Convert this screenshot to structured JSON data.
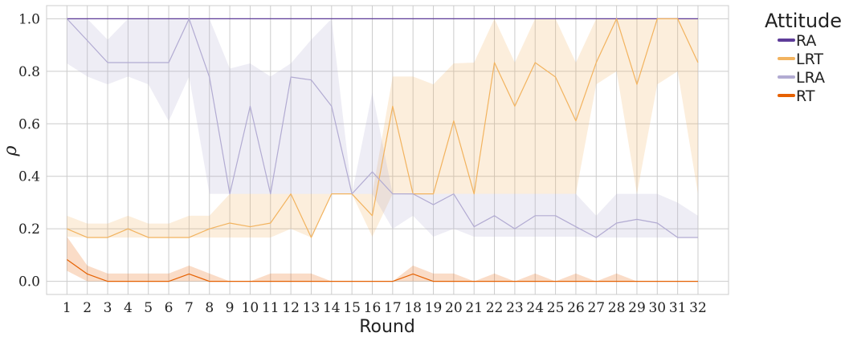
{
  "chart_data": {
    "type": "line",
    "xlabel": "Round",
    "ylabel": "ρ",
    "xlim": [
      0,
      33.5
    ],
    "ylim": [
      -0.05,
      1.05
    ],
    "yticks": [
      "0.0",
      "0.2",
      "0.4",
      "0.6",
      "0.8",
      "1.0"
    ],
    "grid": true,
    "legend_position": "outside-top-right",
    "legend_title": "Attitude",
    "x": [
      1,
      2,
      3,
      4,
      5,
      6,
      7,
      8,
      9,
      10,
      11,
      12,
      13,
      14,
      15,
      16,
      17,
      18,
      19,
      20,
      21,
      22,
      23,
      24,
      25,
      26,
      27,
      28,
      29,
      30,
      31,
      32
    ],
    "series": [
      {
        "name": "RA",
        "color": "#5e3c99",
        "values": [
          1,
          1,
          1,
          1,
          1,
          1,
          1,
          1,
          1,
          1,
          1,
          1,
          1,
          1,
          1,
          1,
          1,
          1,
          1,
          1,
          1,
          1,
          1,
          1,
          1,
          1,
          1,
          1,
          1,
          1,
          1,
          1
        ],
        "lower": [
          1,
          1,
          1,
          1,
          1,
          1,
          1,
          1,
          1,
          1,
          1,
          1,
          1,
          1,
          1,
          1,
          1,
          1,
          1,
          1,
          1,
          1,
          1,
          1,
          1,
          1,
          1,
          1,
          1,
          1,
          1,
          1
        ],
        "upper": [
          1,
          1,
          1,
          1,
          1,
          1,
          1,
          1,
          1,
          1,
          1,
          1,
          1,
          1,
          1,
          1,
          1,
          1,
          1,
          1,
          1,
          1,
          1,
          1,
          1,
          1,
          1,
          1,
          1,
          1,
          1,
          1
        ]
      },
      {
        "name": "LRT",
        "color": "#f2b35f",
        "values": [
          0.2,
          0.167,
          0.167,
          0.2,
          0.167,
          0.167,
          0.167,
          0.2,
          0.222,
          0.208,
          0.222,
          0.333,
          0.167,
          0.333,
          0.333,
          0.25,
          0.667,
          0.333,
          0.333,
          0.611,
          0.333,
          0.833,
          0.667,
          0.833,
          0.778,
          0.611,
          0.833,
          1.0,
          0.75,
          1.0,
          1.0,
          0.833
        ],
        "lower": [
          0.17,
          0.167,
          0.167,
          0.167,
          0.167,
          0.167,
          0.167,
          0.167,
          0.167,
          0.167,
          0.167,
          0.2,
          0.167,
          0.333,
          0.333,
          0.17,
          0.333,
          0.33,
          0.333,
          0.333,
          0.333,
          0.333,
          0.333,
          0.333,
          0.333,
          0.333,
          0.75,
          0.8,
          0.333,
          0.75,
          0.8,
          0.333
        ],
        "upper": [
          0.25,
          0.22,
          0.22,
          0.25,
          0.22,
          0.22,
          0.25,
          0.25,
          0.333,
          0.333,
          0.333,
          0.333,
          0.333,
          0.333,
          0.333,
          0.333,
          0.78,
          0.78,
          0.75,
          0.83,
          0.833,
          1.0,
          0.833,
          1.0,
          1.0,
          0.833,
          1.0,
          1.0,
          1.0,
          1.0,
          1.0,
          1.0
        ]
      },
      {
        "name": "LRA",
        "color": "#b2abd2",
        "values": [
          1.0,
          0.917,
          0.833,
          0.833,
          0.833,
          0.833,
          1.0,
          0.778,
          0.333,
          0.667,
          0.333,
          0.778,
          0.767,
          0.667,
          0.333,
          0.417,
          0.333,
          0.333,
          0.292,
          0.333,
          0.208,
          0.25,
          0.2,
          0.25,
          0.25,
          0.208,
          0.167,
          0.222,
          0.236,
          0.222,
          0.167,
          0.167
        ],
        "lower": [
          0.83,
          0.78,
          0.75,
          0.78,
          0.75,
          0.61,
          0.78,
          0.333,
          0.333,
          0.333,
          0.333,
          0.333,
          0.333,
          0.333,
          0.333,
          0.333,
          0.2,
          0.25,
          0.17,
          0.2,
          0.17,
          0.17,
          0.17,
          0.17,
          0.17,
          0.17,
          0.167,
          0.167,
          0.167,
          0.167,
          0.167,
          0.167
        ],
        "upper": [
          1.0,
          1.0,
          0.92,
          1.0,
          1.0,
          1.0,
          1.0,
          1.0,
          0.81,
          0.83,
          0.78,
          0.83,
          0.92,
          1.0,
          0.333,
          0.72,
          0.333,
          0.333,
          0.333,
          0.333,
          0.333,
          0.333,
          0.333,
          0.333,
          0.333,
          0.333,
          0.25,
          0.333,
          0.333,
          0.333,
          0.3,
          0.25
        ]
      },
      {
        "name": "RT",
        "color": "#e66101",
        "values": [
          0.083,
          0.028,
          0.0,
          0.0,
          0.0,
          0.0,
          0.028,
          0.0,
          0.0,
          0.0,
          0.0,
          0.0,
          0.0,
          0.0,
          0.0,
          0.0,
          0.0,
          0.028,
          0.0,
          0.0,
          0.0,
          0.0,
          0.0,
          0.0,
          0.0,
          0.0,
          0.0,
          0.0,
          0.0,
          0.0,
          0.0,
          0.0
        ],
        "lower": [
          0.04,
          0.0,
          0.0,
          0.0,
          0.0,
          0.0,
          0.0,
          0.0,
          0.0,
          0.0,
          0.0,
          0.0,
          0.0,
          0.0,
          0.0,
          0.0,
          0.0,
          0.0,
          0.0,
          0.0,
          0.0,
          0.0,
          0.0,
          0.0,
          0.0,
          0.0,
          0.0,
          0.0,
          0.0,
          0.0,
          0.0,
          0.0
        ],
        "upper": [
          0.17,
          0.06,
          0.03,
          0.03,
          0.03,
          0.03,
          0.06,
          0.03,
          0.0,
          0.0,
          0.03,
          0.03,
          0.03,
          0.0,
          0.0,
          0.0,
          0.0,
          0.06,
          0.03,
          0.03,
          0.0,
          0.03,
          0.0,
          0.03,
          0.0,
          0.03,
          0.0,
          0.03,
          0.0,
          0.0,
          0.0,
          0.0
        ]
      }
    ]
  }
}
